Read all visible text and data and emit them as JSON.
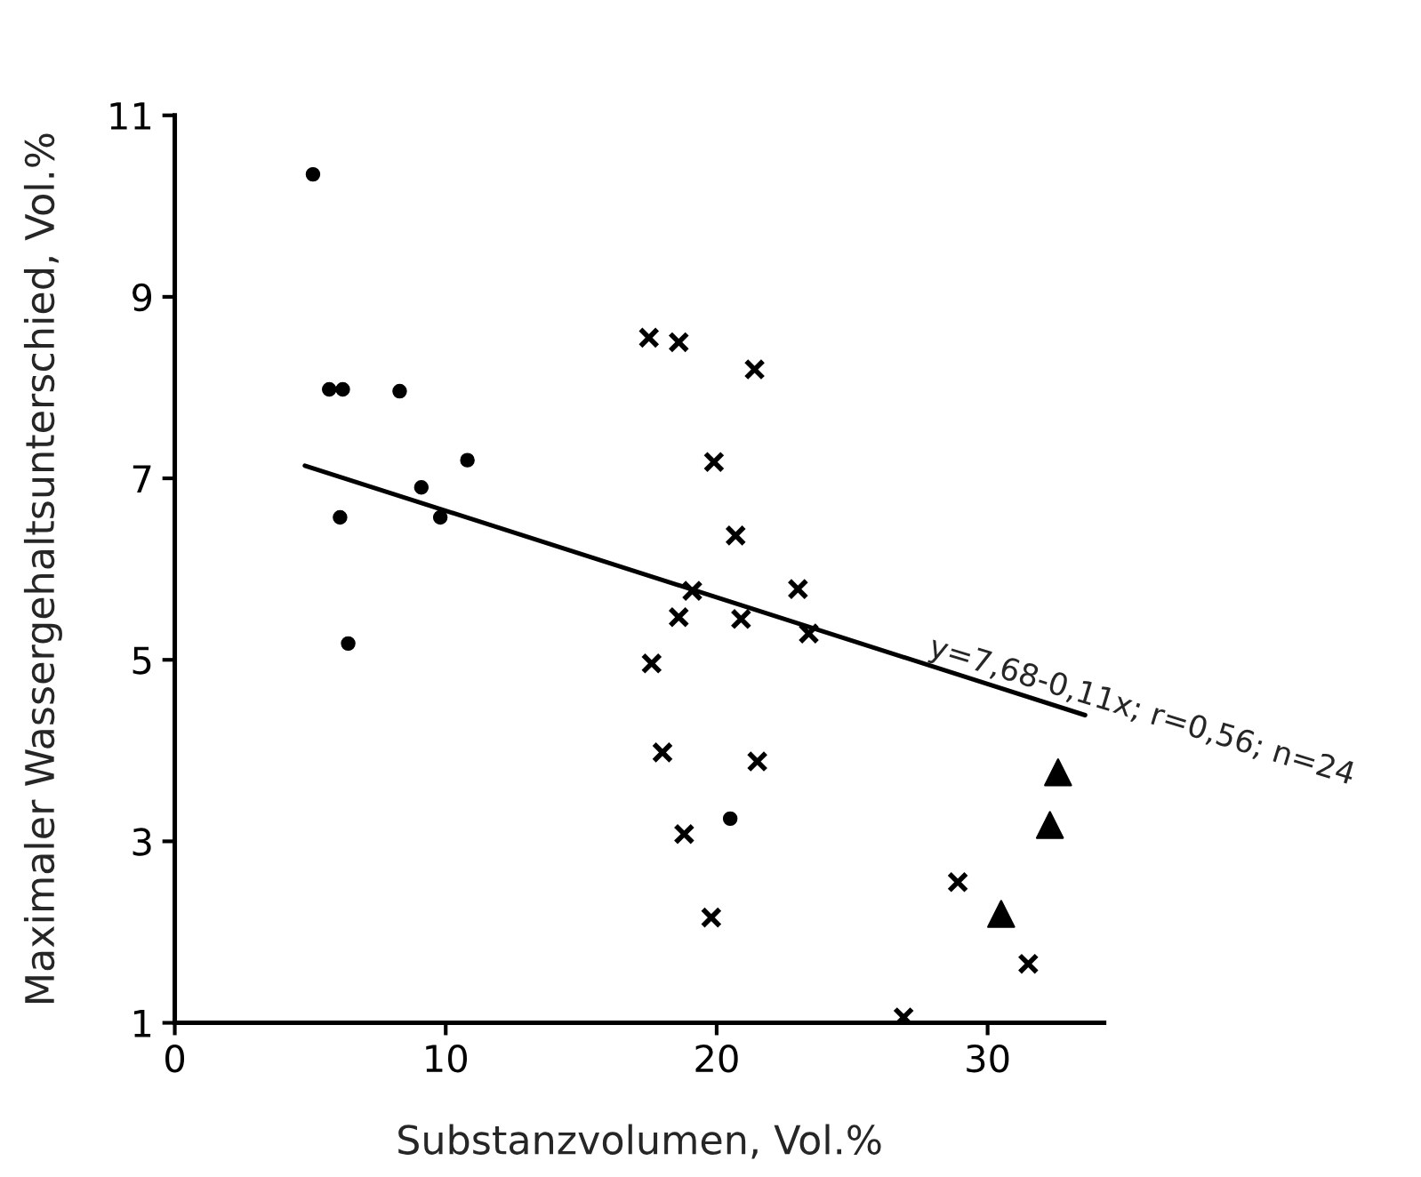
{
  "chart_data": {
    "type": "scatter",
    "xlabel": "Substanzvolumen, Vol.%",
    "ylabel": "Maximaler Wassergehaltsunterschied, Vol.%",
    "xlim": [
      0,
      34.3
    ],
    "xticks": [
      0,
      10,
      20,
      30
    ],
    "ylim": [
      1,
      11
    ],
    "yticks": [
      1,
      3,
      5,
      7,
      9,
      11
    ],
    "grid": false,
    "legend": false,
    "series": [
      {
        "marker": "circle",
        "color": "#000000",
        "x": [
          5.1,
          5.7,
          6.2,
          8.3,
          10.8,
          9.1,
          9.8,
          6.1,
          6.4,
          20.5
        ],
        "values": [
          10.35,
          7.98,
          7.98,
          7.96,
          7.2,
          6.9,
          6.57,
          6.57,
          5.18,
          3.25
        ]
      },
      {
        "marker": "cross",
        "color": "#000000",
        "x": [
          17.5,
          18.6,
          21.4,
          19.9,
          20.7,
          19.1,
          23.0,
          18.6,
          20.9,
          23.4,
          17.6,
          18.0,
          21.5,
          18.8,
          19.8,
          26.9,
          28.9,
          31.5
        ],
        "values": [
          8.55,
          8.5,
          8.2,
          7.18,
          6.37,
          5.76,
          5.78,
          5.47,
          5.45,
          5.29,
          4.96,
          3.98,
          3.88,
          3.08,
          2.16,
          1.06,
          2.55,
          1.65
        ]
      },
      {
        "marker": "triangle",
        "color": "#000000",
        "x": [
          32.6,
          32.3,
          30.5
        ],
        "values": [
          3.76,
          3.18,
          2.2
        ]
      },
      {
        "type": "line",
        "marker": "none",
        "line_style": "solid",
        "color": "#000000",
        "x": [
          4.8,
          33.6
        ],
        "values": [
          7.14,
          4.39
        ]
      }
    ],
    "annotations": [
      {
        "text": "y=7,68-0,11x; r=0,56; n=24",
        "x": 27.7,
        "y": 4.98
      }
    ]
  }
}
